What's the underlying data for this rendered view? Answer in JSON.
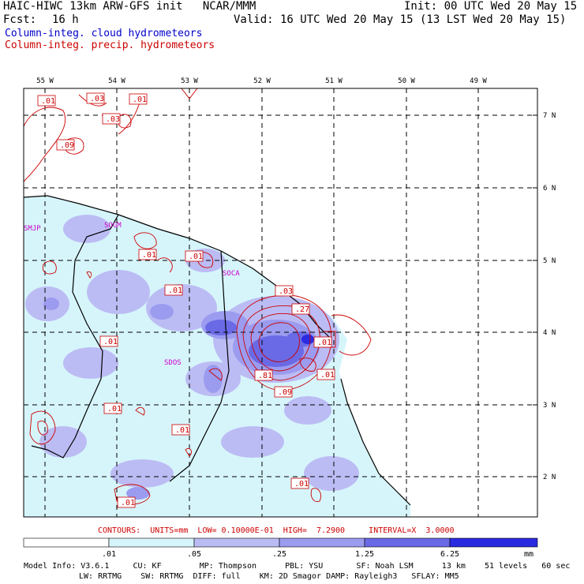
{
  "header": {
    "title": "HAIC-HIWC 13km ARW-GFS init   NCAR/MMM",
    "init": "Init: 00 UTC Wed 20 May 15",
    "fcst_label": "Fcst:",
    "fcst_value": "16 h",
    "valid": "Valid: 16 UTC Wed 20 May 15 (13 LST Wed 20 May 15)",
    "line_cloud": "Column-integ. cloud hydrometeors",
    "line_precip": "Column-integ. precip. hydrometeors"
  },
  "colors": {
    "cloud_text": "#0000cc",
    "precip": "#cc0000",
    "coast": "#000000",
    "station": "#cc00cc",
    "fill_levels": [
      "#d6f5fb",
      "#bcbcf4",
      "#9b9bf0",
      "#6a6ae6",
      "#2a2ae0"
    ]
  },
  "map": {
    "lon_labels": [
      "55 W",
      "54 W",
      "53 W",
      "52 W",
      "51 W",
      "50 W",
      "49 W"
    ],
    "lat_labels": [
      "7 N",
      "6 N",
      "5 N",
      "4 N",
      "3 N",
      "2 N"
    ],
    "stations": [
      "SMJP",
      "SOGM",
      "SOCA",
      "SDOS"
    ],
    "precip_labels": [
      ".01",
      ".03",
      ".01",
      ".03",
      ".09",
      ".01",
      ".01",
      ".01",
      ".03",
      ".27",
      ".01",
      ".01",
      ".81",
      ".09",
      ".01",
      ".01",
      ".01",
      ".01",
      ".01"
    ]
  },
  "contours_line": "CONTOURS:  UNITS=mm  LOW= 0.10000E-01  HIGH=  7.2900     INTERVAL=X  3.0000",
  "colorbar": {
    "ticks": [
      ".01",
      ".05",
      ".25",
      "1.25",
      "6.25"
    ],
    "unit": "mm"
  },
  "model_info": {
    "line1": "Model Info: V3.6.1     CU: KF        MP: Thompson      PBL: YSU       SF: Noah LSM      13 km    51 levels   60 sec",
    "line2": "LW: RRTMG    SW: RRTMG  DIFF: full    KM: 2D Smagor DAMP: Rayleigh3   SFLAY: MM5"
  }
}
